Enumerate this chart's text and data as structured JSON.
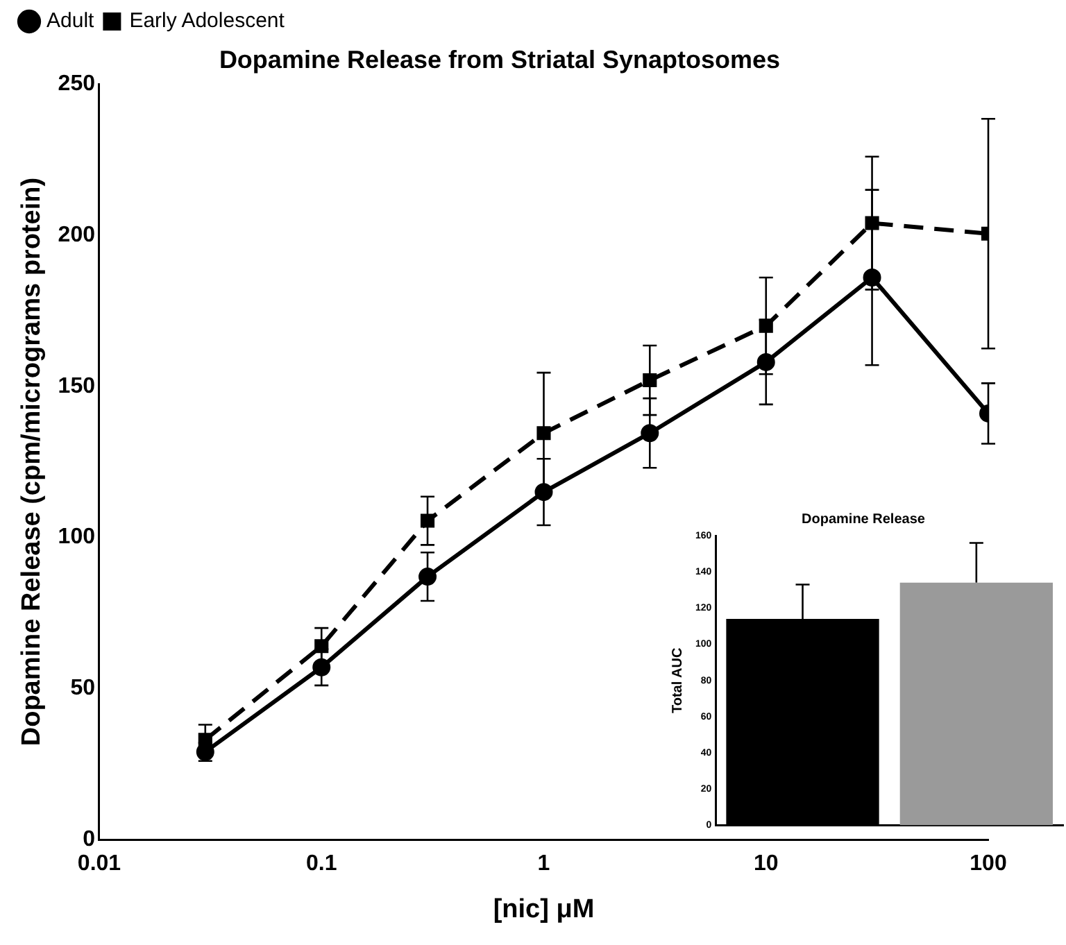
{
  "chart_data": [
    {
      "type": "line",
      "title": "Dopamine Release from Striatal Synaptosomes",
      "xlabel": "[nic] μM",
      "ylabel": "Dopamine Release (cpm/micrograms protein)",
      "x": [
        0.03,
        0.1,
        0.3,
        1,
        3,
        10,
        30,
        100
      ],
      "series": [
        {
          "name": "Adult",
          "color": "#000000",
          "marker": "circle",
          "line_style": "solid",
          "values": [
            29,
            57,
            87,
            115,
            134.5,
            158,
            186,
            141
          ],
          "errors": [
            3,
            6,
            8,
            11,
            11.5,
            14,
            29,
            10
          ]
        },
        {
          "name": "Early Adolescent",
          "color": "#000000",
          "marker": "square",
          "line_style": "dashed",
          "values": [
            33,
            64,
            105.5,
            134.5,
            152,
            170,
            204,
            200.5
          ],
          "errors": [
            5,
            6,
            8,
            20,
            11.5,
            16,
            22,
            38
          ]
        }
      ],
      "log": "x",
      "xlim": [
        0.01,
        100
      ],
      "xticks": [
        0.01,
        0.1,
        1,
        10,
        100
      ],
      "ylim": [
        0,
        250
      ],
      "yticks": [
        0,
        50,
        100,
        150,
        200,
        250
      ],
      "grid": false,
      "legend": "top left"
    },
    {
      "type": "bar",
      "title": "Dopamine Release",
      "ylabel": "Total AUC",
      "categories": [
        null,
        null
      ],
      "values": [
        114,
        134
      ],
      "colors": [
        "#000000",
        "#9a9a9a"
      ],
      "errors": [
        [
          114,
          133
        ],
        [
          134,
          156
        ]
      ],
      "ylim": [
        0,
        160
      ],
      "yticks": [
        0,
        20,
        40,
        60,
        80,
        100,
        120,
        140,
        160
      ],
      "grid": false,
      "tick_labels": "y"
    }
  ]
}
